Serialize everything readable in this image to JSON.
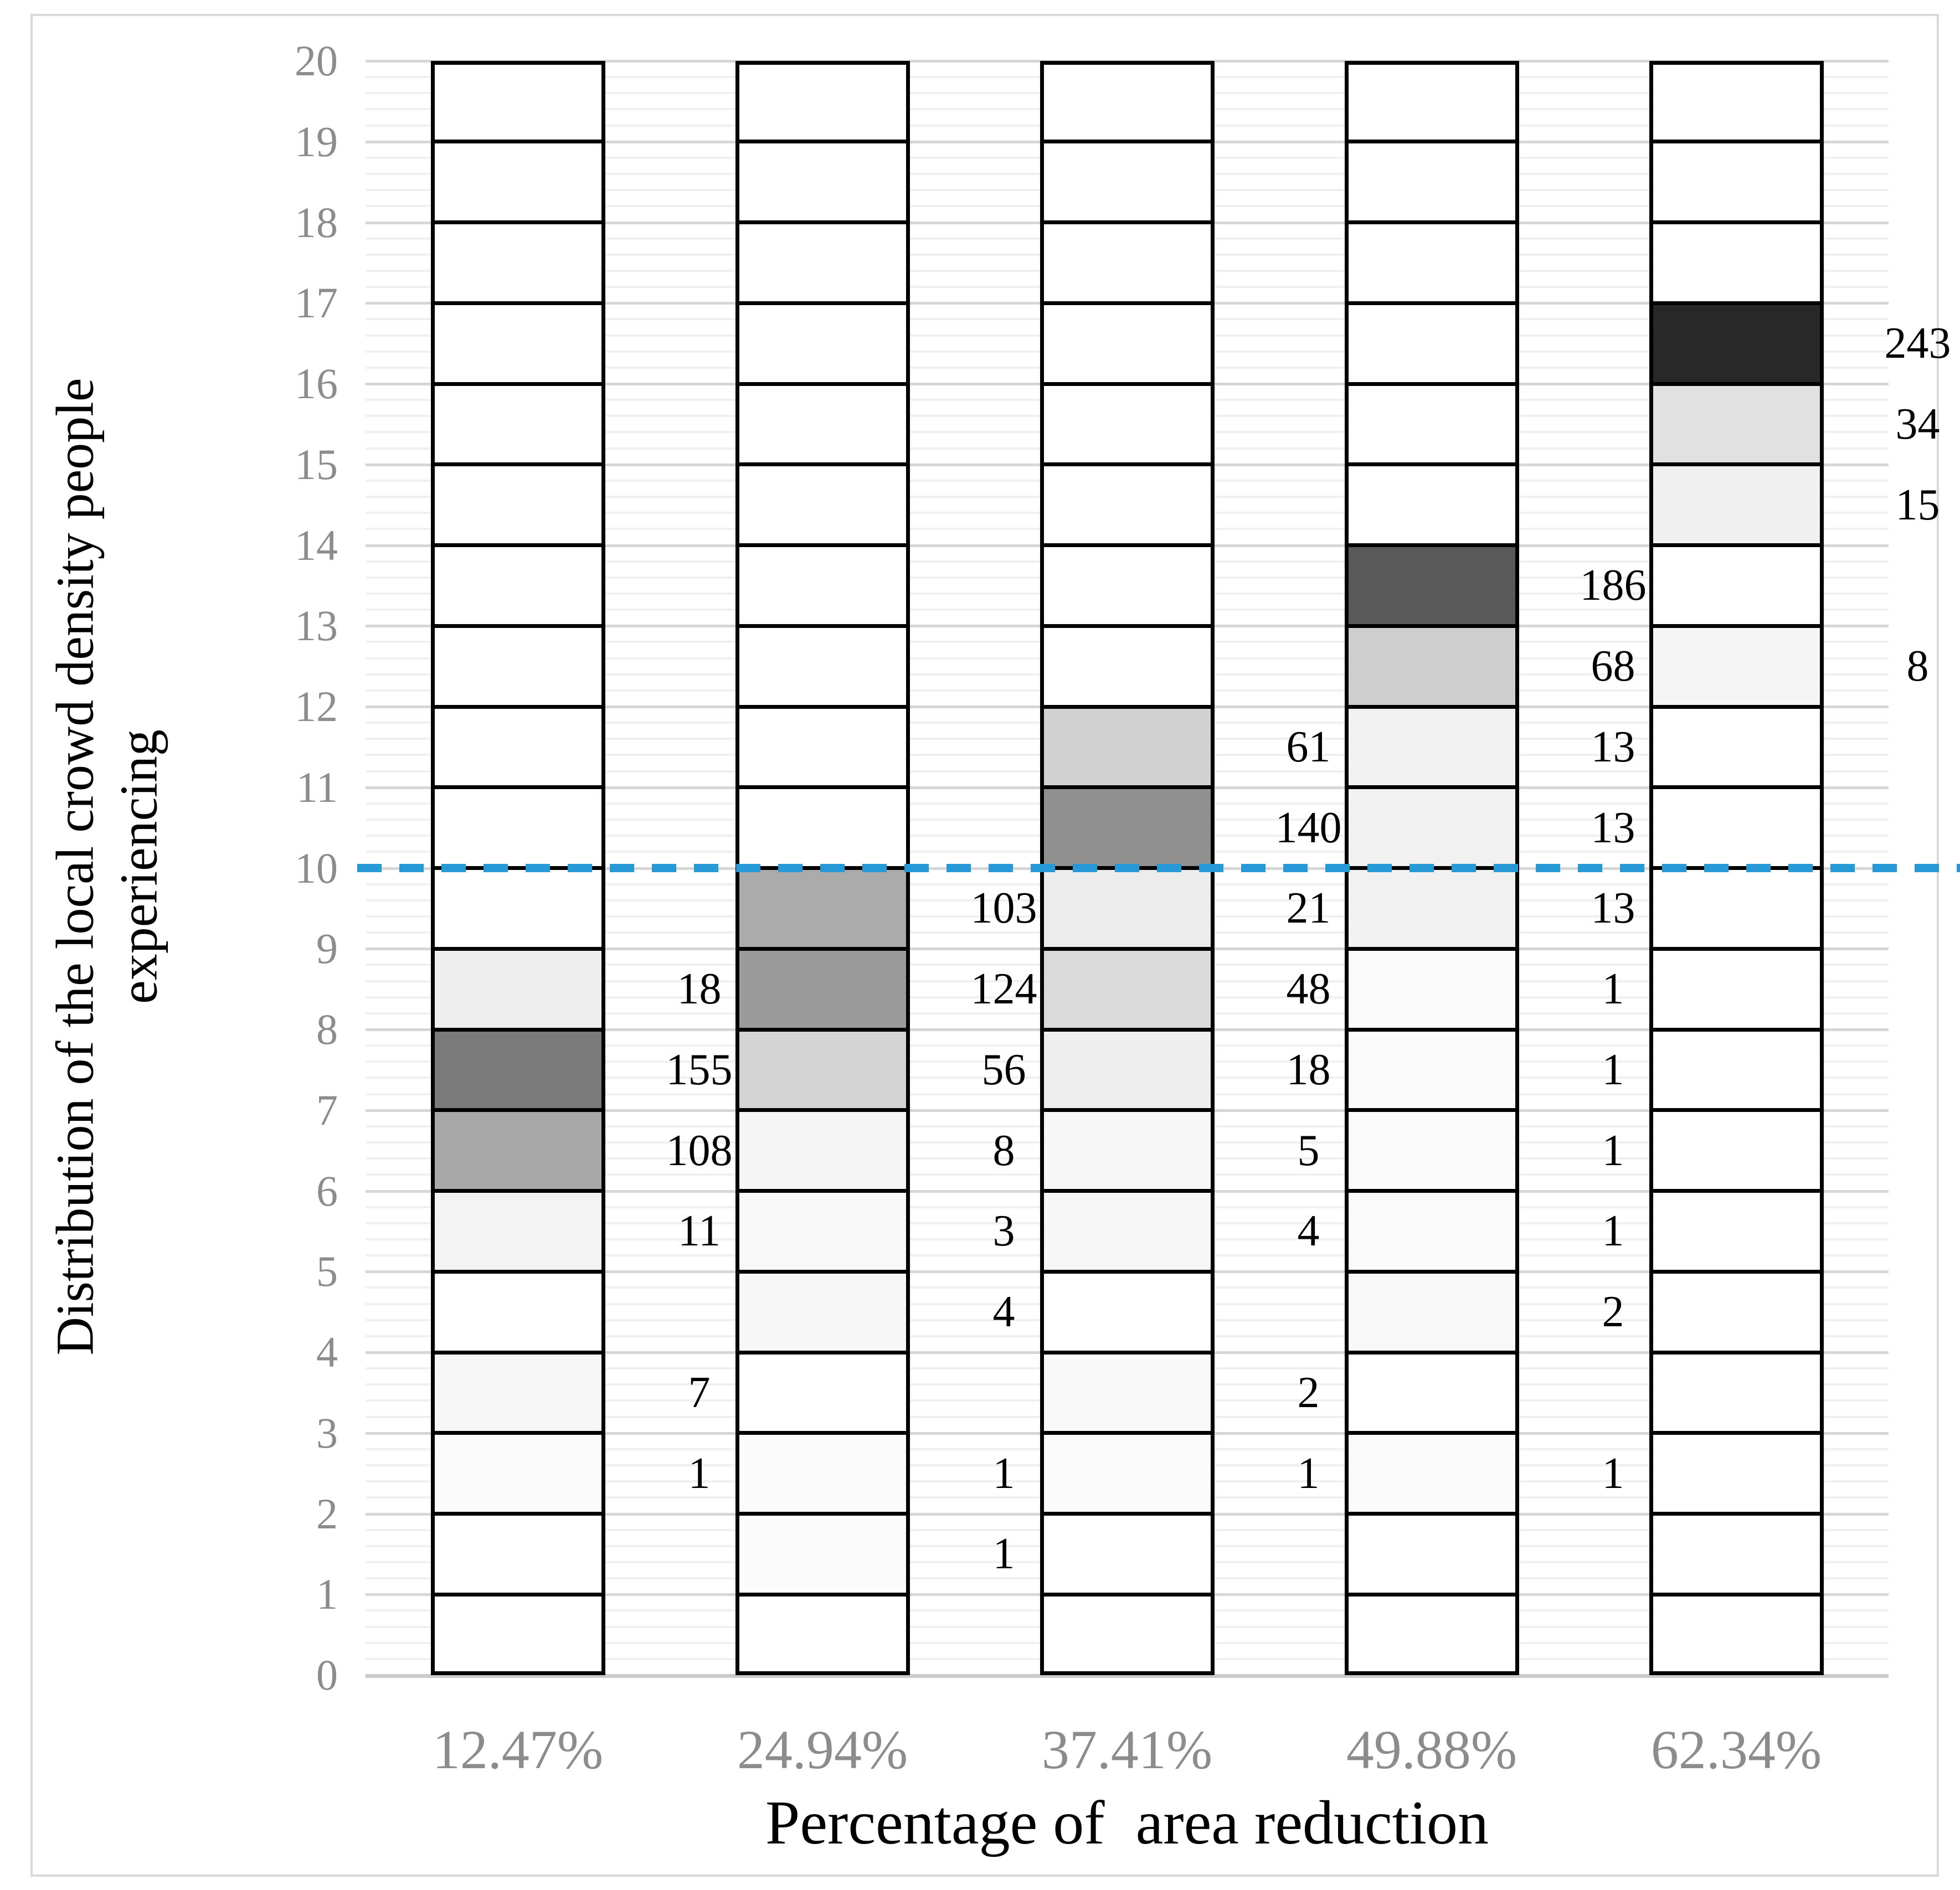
{
  "chart_data": {
    "type": "heatmap",
    "title": "",
    "xlabel": "Percentage of  area reduction",
    "ylabel": "Distribution of the local crowd density people experiencing",
    "ylabel_line1": "Distribution of the local crowd density people",
    "ylabel_line2": "experiencing",
    "x_categories": [
      "12.47%",
      "24.94%",
      "37.41%",
      "49.88%",
      "62.34%"
    ],
    "y_ticks": [
      "0",
      "1",
      "2",
      "3",
      "4",
      "5",
      "6",
      "7",
      "8",
      "9",
      "10",
      "11",
      "12",
      "13",
      "14",
      "15",
      "16",
      "17",
      "18",
      "19",
      "20"
    ],
    "ylim": [
      0,
      20
    ],
    "grid": "major and minor horizontal gridlines, minor every 0.2",
    "legend_position": "none",
    "reference_line": {
      "y": 10,
      "style": "dashed",
      "color": "#2699d6"
    },
    "columns": [
      {
        "category": "12.47%",
        "cells": [
          {
            "row_start": 8,
            "row_end": 9,
            "value": 18,
            "fill": "#eeeeee"
          },
          {
            "row_start": 7,
            "row_end": 8,
            "value": 155,
            "fill": "#7a7a7a"
          },
          {
            "row_start": 6,
            "row_end": 7,
            "value": 108,
            "fill": "#a8a8a8"
          },
          {
            "row_start": 5,
            "row_end": 6,
            "value": 11,
            "fill": "#f3f3f3"
          },
          {
            "row_start": 3,
            "row_end": 4,
            "value": 7,
            "fill": "#f6f6f6"
          },
          {
            "row_start": 2,
            "row_end": 3,
            "value": 1,
            "fill": "#fbfbfb"
          }
        ]
      },
      {
        "category": "24.94%",
        "cells": [
          {
            "row_start": 9,
            "row_end": 10,
            "value": 103,
            "fill": "#ababab"
          },
          {
            "row_start": 8,
            "row_end": 9,
            "value": 124,
            "fill": "#9b9b9b"
          },
          {
            "row_start": 7,
            "row_end": 8,
            "value": 56,
            "fill": "#d4d4d4"
          },
          {
            "row_start": 6,
            "row_end": 7,
            "value": 8,
            "fill": "#f5f5f5"
          },
          {
            "row_start": 5,
            "row_end": 6,
            "value": 3,
            "fill": "#f8f8f8"
          },
          {
            "row_start": 4,
            "row_end": 5,
            "value": 4,
            "fill": "#f7f7f7"
          },
          {
            "row_start": 2,
            "row_end": 3,
            "value": 1,
            "fill": "#fbfbfb"
          },
          {
            "row_start": 1,
            "row_end": 2,
            "value": 1,
            "fill": "#fbfbfb"
          }
        ]
      },
      {
        "category": "37.41%",
        "cells": [
          {
            "row_start": 11,
            "row_end": 12,
            "value": 61,
            "fill": "#d1d1d1"
          },
          {
            "row_start": 10,
            "row_end": 11,
            "value": 140,
            "fill": "#909090"
          },
          {
            "row_start": 9,
            "row_end": 10,
            "value": 21,
            "fill": "#ececec"
          },
          {
            "row_start": 8,
            "row_end": 9,
            "value": 48,
            "fill": "#dbdbdb"
          },
          {
            "row_start": 7,
            "row_end": 8,
            "value": 18,
            "fill": "#eeeeee"
          },
          {
            "row_start": 6,
            "row_end": 7,
            "value": 5,
            "fill": "#f7f7f7"
          },
          {
            "row_start": 5,
            "row_end": 6,
            "value": 4,
            "fill": "#f7f7f7"
          },
          {
            "row_start": 3,
            "row_end": 4,
            "value": 2,
            "fill": "#f9f9f9"
          },
          {
            "row_start": 2,
            "row_end": 3,
            "value": 1,
            "fill": "#fbfbfb"
          }
        ]
      },
      {
        "category": "49.88%",
        "cells": [
          {
            "row_start": 13,
            "row_end": 14,
            "value": 186,
            "fill": "#595959"
          },
          {
            "row_start": 12,
            "row_end": 13,
            "value": 68,
            "fill": "#cecece"
          },
          {
            "row_start": 11,
            "row_end": 12,
            "value": 13,
            "fill": "#f1f1f1"
          },
          {
            "row_start": 10,
            "row_end": 11,
            "value": 13,
            "fill": "#f1f1f1"
          },
          {
            "row_start": 9,
            "row_end": 10,
            "value": 13,
            "fill": "#f1f1f1"
          },
          {
            "row_start": 8,
            "row_end": 9,
            "value": 1,
            "fill": "#fbfbfb"
          },
          {
            "row_start": 7,
            "row_end": 8,
            "value": 1,
            "fill": "#fbfbfb"
          },
          {
            "row_start": 6,
            "row_end": 7,
            "value": 1,
            "fill": "#fbfbfb"
          },
          {
            "row_start": 5,
            "row_end": 6,
            "value": 1,
            "fill": "#fbfbfb"
          },
          {
            "row_start": 4,
            "row_end": 5,
            "value": 2,
            "fill": "#f9f9f9"
          },
          {
            "row_start": 2,
            "row_end": 3,
            "value": 1,
            "fill": "#fbfbfb"
          }
        ]
      },
      {
        "category": "62.34%",
        "cells": [
          {
            "row_start": 16,
            "row_end": 17,
            "value": 243,
            "fill": "#282828"
          },
          {
            "row_start": 15,
            "row_end": 16,
            "value": 34,
            "fill": "#e1e1e1"
          },
          {
            "row_start": 14,
            "row_end": 15,
            "value": 15,
            "fill": "#f0f0f0"
          },
          {
            "row_start": 12,
            "row_end": 13,
            "value": 8,
            "fill": "#f5f5f5"
          }
        ]
      }
    ],
    "colors": {
      "cell_border": "#000000",
      "bar_background": "#ffffff",
      "major_grid": "#d6d6d6",
      "minor_grid": "#f0f0f0",
      "baseline_axis": "#cbcbcb",
      "tick_label": "#8c8c8c",
      "data_label": "#000000",
      "axis_title": "#000000",
      "outer_frame": "#d9d9d9",
      "reference_line": "#2699d6"
    }
  }
}
